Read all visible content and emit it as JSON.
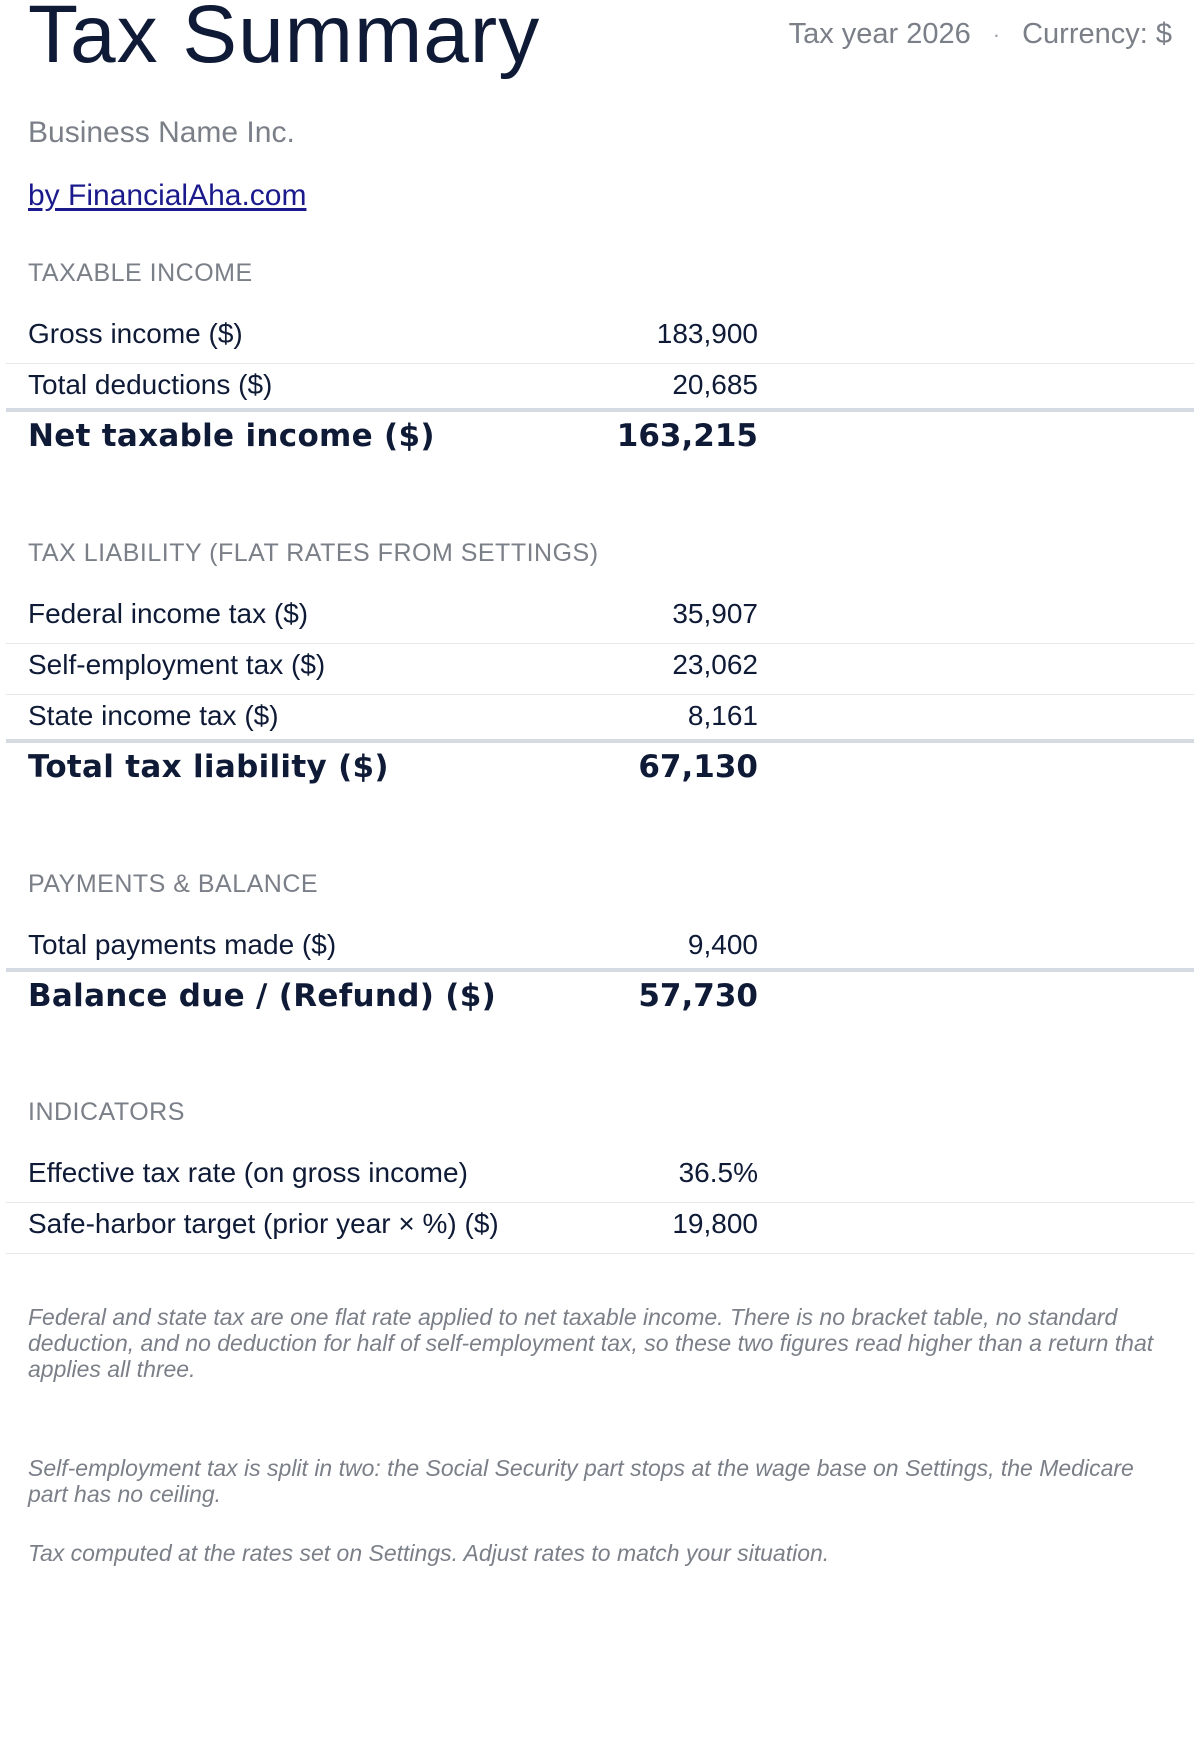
{
  "header": {
    "title": "Tax Summary",
    "tax_year": "Tax year 2026",
    "separator": "·",
    "currency": "Currency: $",
    "business_name": "Business Name Inc.",
    "credit_link": "by FinancialAha.com"
  },
  "sections": {
    "taxable_income": {
      "label": "TAXABLE INCOME",
      "rows": [
        {
          "label": "Gross income ($)",
          "value": "183,900"
        },
        {
          "label": "Total deductions ($)",
          "value": "20,685"
        }
      ],
      "total": {
        "label": "Net taxable income ($)",
        "value": "163,215"
      }
    },
    "tax_liability": {
      "label": "TAX LIABILITY (FLAT RATES FROM SETTINGS)",
      "rows": [
        {
          "label": "Federal income tax ($)",
          "value": "35,907"
        },
        {
          "label": "Self-employment tax ($)",
          "value": "23,062"
        },
        {
          "label": "State income tax ($)",
          "value": "8,161"
        }
      ],
      "total": {
        "label": "Total tax liability ($)",
        "value": "67,130"
      }
    },
    "payments": {
      "label": "PAYMENTS & BALANCE",
      "rows": [
        {
          "label": "Total payments made ($)",
          "value": "9,400"
        }
      ],
      "total": {
        "label": "Balance due / (Refund) ($)",
        "value": "57,730"
      }
    },
    "indicators": {
      "label": "INDICATORS",
      "rows": [
        {
          "label": "Effective tax rate (on gross income)",
          "value": "36.5%"
        },
        {
          "label": "Safe-harbor target (prior year × %) ($)",
          "value": "19,800"
        }
      ]
    }
  },
  "notes": [
    "Federal and state tax are one flat rate applied to net taxable income. There is no bracket table, no standard deduction, and no deduction for half of self-employment tax, so these two figures read higher than a return that applies all three.",
    "Self-employment tax is split in two: the Social Security part stops at the wage base on Settings, the Medicare part has no ceiling.",
    "Tax computed at the rates set on Settings. Adjust rates to match your situation."
  ]
}
